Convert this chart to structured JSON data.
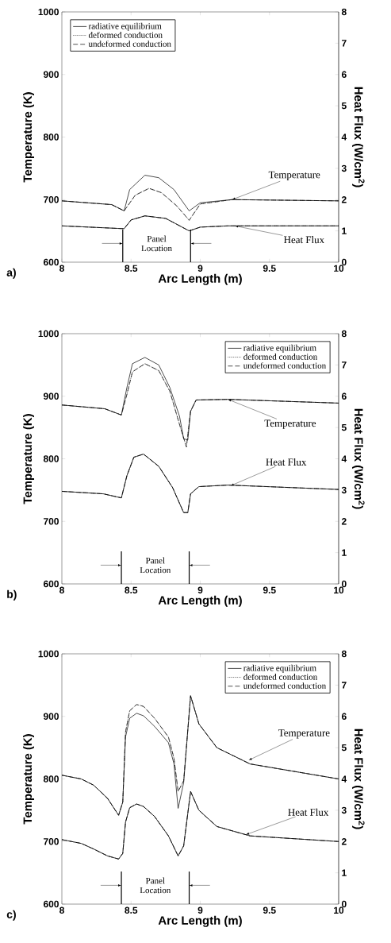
{
  "chart_data": [
    {
      "type": "line",
      "xlabel": "Arc Length (m)",
      "ylabel": "Temperature (K)",
      "y2label": "Heat Flux (W/cm$^{2}$)",
      "xlim": [
        8,
        10
      ],
      "xticks": [
        8,
        8.5,
        9,
        9.5,
        10
      ],
      "ylim": [
        600,
        1000
      ],
      "yticks": [
        600,
        700,
        800,
        900,
        1000
      ],
      "y2lim": [
        0,
        8
      ],
      "y2ticks": [
        0,
        1,
        2,
        3,
        4,
        5,
        6,
        7,
        8
      ],
      "legend": "top left",
      "grid": false,
      "marker": "none",
      "annotations": [
        "a)",
        {
          "text": "Temperature",
          "x": 9.23,
          "y": 700
        },
        {
          "text": "Heat Flux",
          "x": 9.25,
          "y": 658
        },
        "Panel Location"
      ],
      "ref_lines": [
        {
          "axis": "x",
          "value": 8.44,
          "color": "#000000"
        },
        {
          "axis": "x",
          "value": 8.93,
          "color": "#000000"
        }
      ],
      "series": [
        {
          "name": "radiative equilibrium",
          "color": "#000000",
          "line_style": "solid",
          "x": [
            8,
            8.36,
            8.45,
            8.49,
            8.6,
            8.7,
            8.81,
            8.92,
            9.0,
            9.23,
            10
          ],
          "values": [
            698,
            692,
            682,
            716,
            739,
            735,
            716,
            682,
            695,
            700,
            698
          ]
        },
        {
          "name": "deformed conduction",
          "color": "#000000",
          "line_style": "dotted",
          "x": [
            8,
            8.36,
            8.45,
            8.53,
            8.63,
            8.72,
            8.83,
            8.92,
            9.0,
            9.23,
            10
          ],
          "values": [
            698,
            692,
            682,
            707,
            718,
            711,
            690,
            667,
            693,
            700,
            698
          ]
        },
        {
          "name": "undeformed conduction",
          "color": "#000000",
          "line_style": "dashed",
          "x": [
            8,
            8.36,
            8.45,
            8.53,
            8.63,
            8.72,
            8.83,
            8.92,
            9.0,
            9.23,
            10
          ],
          "values": [
            698,
            692,
            682,
            707,
            718,
            711,
            690,
            667,
            693,
            700,
            698
          ]
        },
        {
          "color": "#000000",
          "line_style": "solid",
          "axis": "y2",
          "x": [
            8,
            8.45,
            8.5,
            8.6,
            8.75,
            8.92,
            9.0,
            9.2,
            10
          ],
          "values": [
            1.16,
            1.07,
            1.35,
            1.48,
            1.4,
            1.0,
            1.12,
            1.16,
            1.16
          ]
        },
        {
          "color": "#000000",
          "line_style": "dotted",
          "axis": "y2",
          "x": [
            8,
            8.45,
            8.5,
            8.6,
            8.75,
            8.92,
            9.0,
            9.2,
            10
          ],
          "values": [
            1.16,
            1.07,
            1.35,
            1.48,
            1.4,
            1.0,
            1.12,
            1.16,
            1.16
          ]
        },
        {
          "color": "#000000",
          "line_style": "dashed",
          "axis": "y2",
          "x": [
            8,
            8.45,
            8.5,
            8.6,
            8.75,
            8.92,
            9.0,
            9.2,
            10
          ],
          "values": [
            1.16,
            1.07,
            1.35,
            1.48,
            1.4,
            1.0,
            1.12,
            1.16,
            1.16
          ]
        }
      ]
    },
    {
      "type": "line",
      "xlabel": "Arc Length (m)",
      "ylabel": "Temperature (K)",
      "y2label": "Heat Flux (W/cm$^{2}$)",
      "xlim": [
        8,
        10
      ],
      "xticks": [
        8,
        8.5,
        9,
        9.5,
        10
      ],
      "ylim": [
        600,
        1000
      ],
      "yticks": [
        600,
        700,
        800,
        900,
        1000
      ],
      "y2lim": [
        0,
        8
      ],
      "y2ticks": [
        0,
        1,
        2,
        3,
        4,
        5,
        6,
        7,
        8
      ],
      "legend": "top right",
      "grid": false,
      "marker": "none",
      "annotations": [
        "b)",
        {
          "text": "Temperature",
          "x": 9.2,
          "y": 895
        },
        {
          "text": "Heat Flux",
          "x": 9.22,
          "y": 757
        },
        "Panel Location"
      ],
      "ref_lines": [
        {
          "axis": "x",
          "value": 8.43,
          "color": "#000000"
        },
        {
          "axis": "x",
          "value": 8.92,
          "color": "#000000"
        }
      ],
      "series": [
        {
          "name": "radiative equilibrium",
          "color": "#000000",
          "line_style": "solid",
          "x": [
            8,
            8.31,
            8.43,
            8.47,
            8.51,
            8.6,
            8.7,
            8.78,
            8.85,
            8.88,
            8.91,
            8.93,
            8.97,
            9.2,
            10
          ],
          "values": [
            886,
            880,
            870,
            914,
            952,
            962,
            950,
            914,
            868,
            832,
            830,
            876,
            894,
            895,
            889
          ]
        },
        {
          "name": "deformed conduction",
          "color": "#000000",
          "line_style": "dotted",
          "x": [
            8,
            8.31,
            8.43,
            8.47,
            8.51,
            8.6,
            8.7,
            8.78,
            8.85,
            8.9,
            8.93,
            8.97,
            9.2,
            10
          ],
          "values": [
            886,
            880,
            870,
            903,
            939,
            952,
            941,
            908,
            855,
            819,
            876,
            894,
            895,
            889
          ]
        },
        {
          "name": "undeformed conduction",
          "color": "#000000",
          "line_style": "dashed",
          "x": [
            8,
            8.31,
            8.43,
            8.47,
            8.51,
            8.6,
            8.7,
            8.78,
            8.85,
            8.9,
            8.93,
            8.97,
            9.2,
            10
          ],
          "values": [
            886,
            880,
            870,
            903,
            939,
            952,
            941,
            908,
            855,
            819,
            876,
            894,
            895,
            889
          ]
        },
        {
          "color": "#000000",
          "line_style": "solid",
          "axis": "y2",
          "x": [
            8,
            8.3,
            8.43,
            8.47,
            8.52,
            8.59,
            8.7,
            8.8,
            8.88,
            8.91,
            8.93,
            8.99,
            9.2,
            10
          ],
          "values": [
            2.96,
            2.88,
            2.75,
            3.46,
            4.05,
            4.15,
            3.76,
            3.08,
            2.28,
            2.28,
            2.88,
            3.11,
            3.16,
            3.02
          ]
        },
        {
          "color": "#000000",
          "line_style": "dotted",
          "axis": "y2",
          "x": [
            8,
            8.3,
            8.43,
            8.47,
            8.52,
            8.59,
            8.7,
            8.8,
            8.88,
            8.91,
            8.93,
            8.99,
            9.2,
            10
          ],
          "values": [
            2.96,
            2.88,
            2.75,
            3.46,
            4.05,
            4.15,
            3.76,
            3.08,
            2.28,
            2.28,
            2.88,
            3.11,
            3.16,
            3.02
          ]
        },
        {
          "color": "#000000",
          "line_style": "dashed",
          "axis": "y2",
          "x": [
            8,
            8.3,
            8.43,
            8.47,
            8.52,
            8.59,
            8.7,
            8.8,
            8.88,
            8.91,
            8.93,
            8.99,
            9.2,
            10
          ],
          "values": [
            2.96,
            2.88,
            2.75,
            3.46,
            4.05,
            4.15,
            3.76,
            3.08,
            2.28,
            2.28,
            2.88,
            3.11,
            3.16,
            3.02
          ]
        }
      ]
    },
    {
      "type": "line",
      "xlabel": "Arc Length (m)",
      "ylabel": "Temperature (K)",
      "y2label": "Heat Flux (W/cm$^{2}$)",
      "xlim": [
        8,
        10
      ],
      "xticks": [
        8,
        8.5,
        9,
        9.5,
        10
      ],
      "ylim": [
        600,
        1000
      ],
      "yticks": [
        600,
        700,
        800,
        900,
        1000
      ],
      "y2lim": [
        0,
        8
      ],
      "y2ticks": [
        0,
        1,
        2,
        3,
        4,
        5,
        6,
        7,
        8
      ],
      "legend": "top right",
      "grid": false,
      "marker": "none",
      "annotations": [
        "c)",
        {
          "text": "Temperature",
          "x": 9.35,
          "y": 830
        },
        {
          "text": "Heat Flux",
          "x": 9.33,
          "y": 711
        },
        "Panel Location"
      ],
      "ref_lines": [
        {
          "axis": "x",
          "value": 8.43,
          "color": "#000000"
        },
        {
          "axis": "x",
          "value": 8.92,
          "color": "#000000"
        }
      ],
      "series": [
        {
          "name": "radiative equilibrium",
          "color": "#000000",
          "line_style": "solid",
          "x": [
            8,
            8.14,
            8.23,
            8.33,
            8.41,
            8.44,
            8.46,
            8.49,
            8.54,
            8.59,
            8.67,
            8.77,
            8.81,
            8.84,
            8.88,
            8.93,
            8.99,
            9.12,
            9.36,
            10
          ],
          "values": [
            806,
            800,
            790,
            769,
            742,
            763,
            867,
            897,
            905,
            901,
            884,
            858,
            824,
            753,
            794,
            933,
            888,
            850,
            824,
            800
          ]
        },
        {
          "name": "deformed conduction",
          "color": "#000000",
          "line_style": "dotted",
          "x": [
            8,
            8.14,
            8.23,
            8.33,
            8.41,
            8.44,
            8.46,
            8.49,
            8.54,
            8.59,
            8.67,
            8.77,
            8.81,
            8.84,
            8.88,
            8.93,
            8.99,
            9.12,
            9.36,
            10
          ],
          "values": [
            806,
            800,
            790,
            769,
            742,
            763,
            875,
            909,
            919,
            916,
            897,
            867,
            833,
            780,
            797,
            933,
            888,
            850,
            824,
            800
          ]
        },
        {
          "name": "undeformed conduction",
          "color": "#000000",
          "line_style": "dashed",
          "x": [
            8,
            8.14,
            8.23,
            8.33,
            8.41,
            8.44,
            8.46,
            8.49,
            8.54,
            8.59,
            8.67,
            8.77,
            8.81,
            8.84,
            8.88,
            8.93,
            8.99,
            9.12,
            9.36,
            10
          ],
          "values": [
            806,
            800,
            790,
            769,
            742,
            763,
            875,
            909,
            919,
            916,
            897,
            867,
            833,
            780,
            797,
            933,
            888,
            850,
            824,
            800
          ]
        },
        {
          "color": "#000000",
          "line_style": "solid",
          "axis": "y2",
          "x": [
            8,
            8.14,
            8.23,
            8.33,
            8.41,
            8.44,
            8.46,
            8.49,
            8.54,
            8.59,
            8.67,
            8.77,
            8.84,
            8.88,
            8.93,
            8.99,
            9.12,
            9.36,
            10
          ],
          "values": [
            2.06,
            1.94,
            1.76,
            1.54,
            1.44,
            1.62,
            2.62,
            3.08,
            3.2,
            3.12,
            2.8,
            2.18,
            1.54,
            1.86,
            3.6,
            3.0,
            2.48,
            2.18,
            2.0
          ]
        },
        {
          "color": "#000000",
          "line_style": "dotted",
          "axis": "y2",
          "x": [
            8,
            8.14,
            8.23,
            8.33,
            8.41,
            8.44,
            8.46,
            8.49,
            8.54,
            8.59,
            8.67,
            8.77,
            8.84,
            8.88,
            8.93,
            8.99,
            9.12,
            9.36,
            10
          ],
          "values": [
            2.06,
            1.94,
            1.76,
            1.54,
            1.44,
            1.62,
            2.62,
            3.08,
            3.2,
            3.12,
            2.8,
            2.18,
            1.54,
            1.86,
            3.6,
            3.0,
            2.48,
            2.18,
            2.0
          ]
        },
        {
          "color": "#000000",
          "line_style": "dashed",
          "axis": "y2",
          "x": [
            8,
            8.14,
            8.23,
            8.33,
            8.41,
            8.44,
            8.46,
            8.49,
            8.54,
            8.59,
            8.67,
            8.77,
            8.84,
            8.88,
            8.93,
            8.99,
            9.12,
            9.36,
            10
          ],
          "values": [
            2.06,
            1.94,
            1.76,
            1.54,
            1.44,
            1.62,
            2.62,
            3.08,
            3.2,
            3.12,
            2.8,
            2.18,
            1.54,
            1.86,
            3.6,
            3.0,
            2.48,
            2.18,
            2.0
          ]
        }
      ]
    }
  ]
}
